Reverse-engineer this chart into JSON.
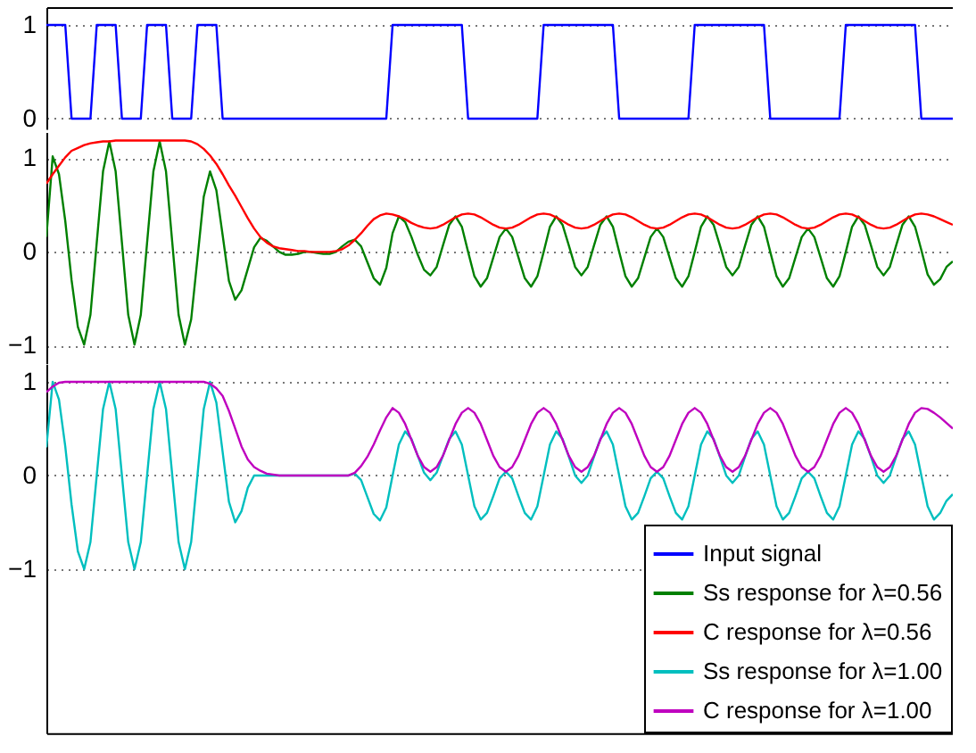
{
  "chart_data": [
    {
      "type": "line",
      "categories": [
        null,
        null,
        null,
        null,
        null,
        null,
        null,
        null,
        null,
        null,
        null,
        null,
        null,
        null,
        null,
        null,
        null,
        null,
        null,
        null,
        null,
        null,
        null,
        null,
        null,
        null,
        null,
        null,
        null,
        null,
        null,
        null,
        null,
        null,
        null,
        null,
        null,
        null,
        null,
        null,
        null,
        null,
        null,
        null,
        null,
        null,
        null,
        null,
        null,
        null,
        null,
        null,
        null,
        null,
        null,
        null,
        null,
        null,
        null,
        null,
        null,
        null,
        null,
        null,
        null,
        null,
        null,
        null,
        null,
        null,
        null,
        null,
        null,
        null,
        null,
        null,
        null,
        null,
        null,
        null,
        null,
        null,
        null,
        null,
        null,
        null,
        null,
        null,
        null,
        null,
        null,
        null,
        null,
        null,
        null,
        null,
        null,
        null,
        null,
        null,
        null,
        null,
        null,
        null,
        null,
        null,
        null,
        null,
        null,
        null,
        null,
        null,
        null,
        null,
        null,
        null,
        null,
        null,
        null,
        null,
        null,
        null,
        null,
        null,
        null,
        null,
        null,
        null,
        null,
        null,
        null,
        null,
        null,
        null,
        null,
        null,
        null,
        null,
        null,
        null,
        null,
        null,
        null,
        null,
        null
      ],
      "ylim": [
        -0.11,
        1.19
      ],
      "yticks": [
        0,
        1
      ],
      "grid": "y",
      "tick_labels": "y",
      "legend": "bottom right",
      "series": [
        {
          "name": "Input signal",
          "color": "#0000ff",
          "values": [
            1,
            1,
            1,
            1,
            0,
            0,
            0,
            0,
            1,
            1,
            1,
            1,
            0,
            0,
            0,
            0,
            1,
            1,
            1,
            1,
            0,
            0,
            0,
            0,
            1,
            1,
            1,
            1,
            0,
            0,
            0,
            0,
            0,
            0,
            0,
            0,
            0,
            0,
            0,
            0,
            0,
            0,
            0,
            0,
            0,
            0,
            0,
            0,
            0,
            0,
            0,
            0,
            0,
            0,
            0,
            1,
            1,
            1,
            1,
            1,
            1,
            1,
            1,
            1,
            1,
            1,
            1,
            0,
            0,
            0,
            0,
            0,
            0,
            0,
            0,
            0,
            0,
            0,
            0,
            1,
            1,
            1,
            1,
            1,
            1,
            1,
            1,
            1,
            1,
            1,
            1,
            0,
            0,
            0,
            0,
            0,
            0,
            0,
            0,
            0,
            0,
            0,
            0,
            1,
            1,
            1,
            1,
            1,
            1,
            1,
            1,
            1,
            1,
            1,
            1,
            0,
            0,
            0,
            0,
            0,
            0,
            0,
            0,
            0,
            0,
            0,
            0,
            1,
            1,
            1,
            1,
            1,
            1,
            1,
            1,
            1,
            1,
            1,
            1,
            0,
            0,
            0,
            0,
            0,
            0
          ]
        }
      ]
    },
    {
      "type": "line",
      "categories": [
        null,
        null,
        null,
        null,
        null,
        null,
        null,
        null,
        null,
        null,
        null,
        null,
        null,
        null,
        null,
        null,
        null,
        null,
        null,
        null,
        null,
        null,
        null,
        null,
        null,
        null,
        null,
        null,
        null,
        null,
        null,
        null,
        null,
        null,
        null,
        null,
        null,
        null,
        null,
        null,
        null,
        null,
        null,
        null,
        null,
        null,
        null,
        null,
        null,
        null,
        null,
        null,
        null,
        null,
        null,
        null,
        null,
        null,
        null,
        null,
        null,
        null,
        null,
        null,
        null,
        null,
        null,
        null,
        null,
        null,
        null,
        null,
        null,
        null,
        null,
        null,
        null,
        null,
        null,
        null,
        null,
        null,
        null,
        null,
        null,
        null,
        null,
        null,
        null,
        null,
        null,
        null,
        null,
        null,
        null,
        null,
        null,
        null,
        null,
        null,
        null,
        null,
        null,
        null,
        null,
        null,
        null,
        null,
        null,
        null,
        null,
        null,
        null,
        null,
        null,
        null,
        null,
        null,
        null,
        null,
        null,
        null,
        null,
        null,
        null,
        null,
        null,
        null,
        null,
        null,
        null,
        null,
        null,
        null,
        null,
        null,
        null,
        null,
        null,
        null,
        null,
        null,
        null,
        null,
        null
      ],
      "ylim": [
        -1.19,
        1.28
      ],
      "yticks": [
        {
          "value": -1,
          "label": "−1"
        },
        0,
        1
      ],
      "grid": "y",
      "tick_labels": "y",
      "legend": "bottom right",
      "series": [
        {
          "name": "Ss response for λ=0.56",
          "color": "#008000",
          "values": [
            0.16,
            1.02,
            0.83,
            0.33,
            -0.3,
            -0.8,
            -0.99,
            -0.67,
            0.1,
            0.86,
            1.18,
            0.86,
            0.1,
            -0.67,
            -0.99,
            -0.67,
            0.1,
            0.86,
            1.18,
            0.86,
            0.1,
            -0.67,
            -0.99,
            -0.72,
            -0.07,
            0.59,
            0.86,
            0.66,
            0.18,
            -0.31,
            -0.51,
            -0.41,
            -0.18,
            0.05,
            0.15,
            0.12,
            0.06,
            0.0,
            -0.03,
            -0.03,
            -0.02,
            0,
            0,
            -0.01,
            -0.02,
            -0.02,
            0,
            0.06,
            0.11,
            0.13,
            0.06,
            -0.11,
            -0.28,
            -0.35,
            -0.17,
            0.2,
            0.38,
            0.32,
            0.16,
            -0.03,
            -0.19,
            -0.25,
            -0.16,
            0.07,
            0.29,
            0.38,
            0.27,
            0.0,
            -0.26,
            -0.37,
            -0.28,
            -0.06,
            0.16,
            0.25,
            0.16,
            -0.06,
            -0.28,
            -0.37,
            -0.26,
            0.0,
            0.27,
            0.38,
            0.29,
            0.07,
            -0.16,
            -0.25,
            -0.16,
            0.07,
            0.29,
            0.38,
            0.27,
            0.0,
            -0.26,
            -0.37,
            -0.28,
            -0.06,
            0.16,
            0.25,
            0.16,
            -0.06,
            -0.28,
            -0.37,
            -0.26,
            0.0,
            0.27,
            0.38,
            0.29,
            0.07,
            -0.16,
            -0.25,
            -0.16,
            0.07,
            0.29,
            0.38,
            0.27,
            0.0,
            -0.26,
            -0.37,
            -0.28,
            -0.06,
            0.16,
            0.25,
            0.16,
            -0.06,
            -0.28,
            -0.37,
            -0.26,
            0.0,
            0.27,
            0.38,
            0.29,
            0.07,
            -0.16,
            -0.25,
            -0.16,
            0.07,
            0.29,
            0.38,
            0.27,
            0.02,
            -0.24,
            -0.35,
            -0.29,
            -0.16,
            -0.1
          ]
        },
        {
          "name": "C response for λ=0.56",
          "color": "#ff0000",
          "values": [
            0.73,
            0.83,
            0.92,
            1.01,
            1.08,
            1.11,
            1.14,
            1.16,
            1.17,
            1.18,
            1.18,
            1.19,
            1.19,
            1.19,
            1.19,
            1.19,
            1.19,
            1.19,
            1.19,
            1.19,
            1.19,
            1.19,
            1.19,
            1.18,
            1.15,
            1.1,
            1.03,
            0.94,
            0.83,
            0.71,
            0.6,
            0.48,
            0.36,
            0.25,
            0.16,
            0.1,
            0.06,
            0.04,
            0.03,
            0.02,
            0.01,
            0.01,
            0,
            0,
            0,
            0,
            0.01,
            0.03,
            0.07,
            0.13,
            0.2,
            0.28,
            0.35,
            0.39,
            0.41,
            0.4,
            0.38,
            0.35,
            0.31,
            0.28,
            0.26,
            0.25,
            0.26,
            0.29,
            0.33,
            0.37,
            0.4,
            0.41,
            0.4,
            0.37,
            0.33,
            0.29,
            0.26,
            0.25,
            0.26,
            0.29,
            0.33,
            0.37,
            0.4,
            0.41,
            0.4,
            0.37,
            0.33,
            0.29,
            0.26,
            0.25,
            0.26,
            0.29,
            0.33,
            0.37,
            0.4,
            0.41,
            0.4,
            0.37,
            0.33,
            0.29,
            0.26,
            0.25,
            0.26,
            0.29,
            0.33,
            0.37,
            0.4,
            0.41,
            0.4,
            0.37,
            0.33,
            0.29,
            0.26,
            0.25,
            0.26,
            0.29,
            0.33,
            0.37,
            0.4,
            0.41,
            0.4,
            0.37,
            0.33,
            0.29,
            0.26,
            0.25,
            0.26,
            0.29,
            0.33,
            0.37,
            0.4,
            0.41,
            0.4,
            0.37,
            0.33,
            0.29,
            0.26,
            0.25,
            0.26,
            0.29,
            0.33,
            0.37,
            0.4,
            0.41,
            0.4,
            0.38,
            0.35,
            0.32,
            0.29
          ]
        }
      ]
    },
    {
      "type": "line",
      "categories": [
        null,
        null,
        null,
        null,
        null,
        null,
        null,
        null,
        null,
        null,
        null,
        null,
        null,
        null,
        null,
        null,
        null,
        null,
        null,
        null,
        null,
        null,
        null,
        null,
        null,
        null,
        null,
        null,
        null,
        null,
        null,
        null,
        null,
        null,
        null,
        null,
        null,
        null,
        null,
        null,
        null,
        null,
        null,
        null,
        null,
        null,
        null,
        null,
        null,
        null,
        null,
        null,
        null,
        null,
        null,
        null,
        null,
        null,
        null,
        null,
        null,
        null,
        null,
        null,
        null,
        null,
        null,
        null,
        null,
        null,
        null,
        null,
        null,
        null,
        null,
        null,
        null,
        null,
        null,
        null,
        null,
        null,
        null,
        null,
        null,
        null,
        null,
        null,
        null,
        null,
        null,
        null,
        null,
        null,
        null,
        null,
        null,
        null,
        null,
        null,
        null,
        null,
        null,
        null,
        null,
        null,
        null,
        null,
        null,
        null,
        null,
        null,
        null,
        null,
        null,
        null,
        null,
        null,
        null,
        null,
        null,
        null,
        null,
        null,
        null,
        null,
        null,
        null,
        null,
        null,
        null,
        null,
        null,
        null,
        null,
        null,
        null,
        null,
        null,
        null,
        null,
        null,
        null,
        null,
        null
      ],
      "ylim": [
        -2.75,
        1.19
      ],
      "yticks": [
        {
          "value": -1,
          "label": "−1"
        },
        0,
        1
      ],
      "grid": "y",
      "tick_labels": "y",
      "legend": "bottom right",
      "series": [
        {
          "name": "Ss response for λ=1.00",
          "color": "#00bfbf",
          "values": [
            0.3,
            1.0,
            0.81,
            0.31,
            -0.31,
            -0.81,
            -1,
            -0.71,
            0,
            0.71,
            1,
            0.71,
            0,
            -0.71,
            -1,
            -0.71,
            0,
            0.71,
            1,
            0.71,
            0,
            -0.71,
            -1,
            -0.71,
            0,
            0.71,
            1,
            0.78,
            0.25,
            -0.28,
            -0.5,
            -0.38,
            -0.13,
            0,
            0,
            0,
            0,
            0,
            0,
            0,
            0,
            0,
            0,
            0,
            0,
            0,
            0,
            0,
            0,
            0.02,
            -0.05,
            -0.23,
            -0.41,
            -0.48,
            -0.34,
            0,
            0.33,
            0.47,
            0.39,
            0.21,
            0.03,
            -0.05,
            0.03,
            0.21,
            0.39,
            0.47,
            0.33,
            0,
            -0.33,
            -0.47,
            -0.4,
            -0.22,
            -0.03,
            0.04,
            -0.03,
            -0.22,
            -0.4,
            -0.47,
            -0.33,
            0,
            0.33,
            0.47,
            0.39,
            0.2,
            0.0,
            -0.08,
            0.0,
            0.2,
            0.39,
            0.47,
            0.33,
            0,
            -0.33,
            -0.47,
            -0.4,
            -0.22,
            -0.03,
            0.04,
            -0.03,
            -0.22,
            -0.4,
            -0.47,
            -0.33,
            0,
            0.33,
            0.47,
            0.39,
            0.2,
            0.0,
            -0.08,
            0.0,
            0.2,
            0.39,
            0.47,
            0.33,
            0,
            -0.33,
            -0.47,
            -0.4,
            -0.22,
            -0.03,
            0.04,
            -0.03,
            -0.22,
            -0.4,
            -0.47,
            -0.33,
            0,
            0.33,
            0.47,
            0.39,
            0.2,
            0.0,
            -0.08,
            0.0,
            0.2,
            0.39,
            0.47,
            0.33,
            0,
            -0.33,
            -0.47,
            -0.4,
            -0.27,
            -0.2
          ]
        },
        {
          "name": "C response for λ=1.00",
          "color": "#bf00bf",
          "values": [
            0.89,
            0.95,
            0.99,
            1.0,
            1,
            1,
            1,
            1,
            1,
            1,
            1,
            1,
            1,
            1,
            1,
            1,
            1,
            1,
            1,
            1,
            1,
            1,
            1,
            1,
            1,
            1,
            0.98,
            0.93,
            0.85,
            0.69,
            0.5,
            0.31,
            0.17,
            0.09,
            0.05,
            0.02,
            0.01,
            0,
            0,
            0,
            0,
            0,
            0,
            0,
            0,
            0,
            0,
            0,
            0,
            0.03,
            0.1,
            0.2,
            0.33,
            0.48,
            0.62,
            0.72,
            0.67,
            0.55,
            0.38,
            0.21,
            0.09,
            0.04,
            0.09,
            0.21,
            0.38,
            0.55,
            0.67,
            0.72,
            0.67,
            0.55,
            0.38,
            0.21,
            0.09,
            0.04,
            0.09,
            0.21,
            0.38,
            0.55,
            0.67,
            0.72,
            0.67,
            0.55,
            0.38,
            0.21,
            0.09,
            0.04,
            0.09,
            0.21,
            0.38,
            0.55,
            0.67,
            0.72,
            0.67,
            0.55,
            0.38,
            0.21,
            0.09,
            0.04,
            0.09,
            0.21,
            0.38,
            0.55,
            0.67,
            0.72,
            0.67,
            0.55,
            0.38,
            0.21,
            0.09,
            0.04,
            0.09,
            0.21,
            0.38,
            0.55,
            0.67,
            0.72,
            0.67,
            0.55,
            0.38,
            0.21,
            0.09,
            0.04,
            0.09,
            0.21,
            0.38,
            0.55,
            0.67,
            0.72,
            0.67,
            0.55,
            0.38,
            0.21,
            0.09,
            0.04,
            0.09,
            0.21,
            0.38,
            0.55,
            0.67,
            0.72,
            0.71,
            0.67,
            0.62,
            0.56,
            0.5
          ]
        }
      ]
    }
  ]
}
